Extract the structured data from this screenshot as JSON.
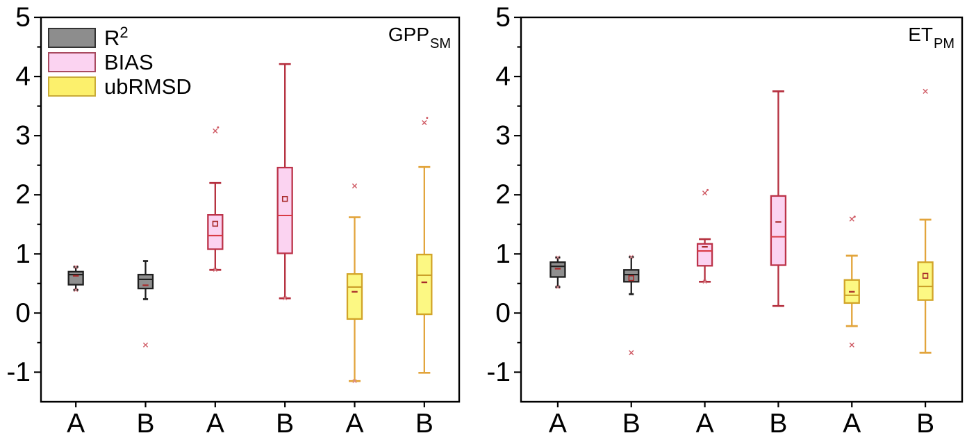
{
  "figure": {
    "background": "#ffffff",
    "frame_color": "#000000"
  },
  "legend": {
    "entries": [
      {
        "label": "R",
        "sup": "2",
        "fill": "#8d8d8d",
        "edge": "#333333"
      },
      {
        "label": "BIAS",
        "sup": "",
        "fill": "#fbd3f1",
        "edge": "#a84a60"
      },
      {
        "label": "ubRMSD",
        "sup": "",
        "fill": "#fcf06c",
        "edge": "#c9ac38"
      }
    ]
  },
  "series_styles": {
    "R2": {
      "fill": "#8f8f8f",
      "edge": "#1f1f1f",
      "whisker": "#1f1f1f",
      "median": "#1f1f1f"
    },
    "BIAS": {
      "fill": "#fbd3f1",
      "edge": "#bc3349",
      "whisker": "#b5303f",
      "median": "#d93b46"
    },
    "ubRMSD": {
      "fill": "#fcf883",
      "edge": "#d2a428",
      "whisker": "#e2a43b",
      "median": "#caa02a"
    }
  },
  "marker_styles": {
    "mean_color": "#a82a2a",
    "outlier_color": "#cf5a64",
    "cap_mark_color": "#dc8890"
  },
  "chart_data": [
    {
      "type": "box",
      "panel": "left",
      "title": "GPP",
      "title_sub": "SM",
      "categories": [
        "A",
        "B",
        "A",
        "B",
        "A",
        "B"
      ],
      "ylim": [
        -1.5,
        5
      ],
      "yticks": [
        -1,
        0,
        1,
        2,
        3,
        4,
        5
      ],
      "y_minor_step": 0.5,
      "grid": false,
      "boxes": [
        {
          "series": "R2",
          "category": "A",
          "whisker_low": 0.39,
          "q1": 0.48,
          "median": 0.65,
          "q3": 0.7,
          "whisker_high": 0.78,
          "mean": 0.63,
          "mean_marker": "dash",
          "outliers": [],
          "cap_marks": [
            0.78,
            0.39
          ]
        },
        {
          "series": "R2",
          "category": "B",
          "whisker_low": 0.235,
          "q1": 0.415,
          "median": 0.57,
          "q3": 0.65,
          "whisker_high": 0.88,
          "mean": 0.47,
          "mean_marker": "dash",
          "outliers": [
            -0.54
          ],
          "cap_marks": []
        },
        {
          "series": "BIAS",
          "category": "A",
          "whisker_low": 0.73,
          "q1": 1.08,
          "median": 1.31,
          "q3": 1.66,
          "whisker_high": 2.2,
          "mean": 1.51,
          "mean_marker": "square",
          "outliers": [
            3.08,
            3.14
          ],
          "cap_marks": [
            0.73
          ]
        },
        {
          "series": "BIAS",
          "category": "B",
          "whisker_low": 0.25,
          "q1": 1.01,
          "median": 1.65,
          "q3": 2.46,
          "whisker_high": 4.21,
          "mean": 1.93,
          "mean_marker": "square",
          "outliers": [],
          "cap_marks": [
            0.25
          ]
        },
        {
          "series": "ubRMSD",
          "category": "A",
          "whisker_low": -1.15,
          "q1": -0.1,
          "median": 0.44,
          "q3": 0.66,
          "whisker_high": 1.62,
          "mean": 0.36,
          "mean_marker": "dash",
          "outliers": [
            2.15
          ],
          "cap_marks": [
            -1.15
          ]
        },
        {
          "series": "ubRMSD",
          "category": "B",
          "whisker_low": -1.01,
          "q1": -0.02,
          "median": 0.64,
          "q3": 0.99,
          "whisker_high": 2.47,
          "mean": 0.52,
          "mean_marker": "dash",
          "outliers": [
            3.22,
            3.3
          ],
          "cap_marks": []
        }
      ]
    },
    {
      "type": "box",
      "panel": "right",
      "title": "ET",
      "title_sub": "PM",
      "categories": [
        "A",
        "B",
        "A",
        "B",
        "A",
        "B"
      ],
      "ylim": [
        -1.5,
        5
      ],
      "yticks": [
        -1,
        0,
        1,
        2,
        3,
        4,
        5
      ],
      "y_minor_step": 0.5,
      "grid": false,
      "boxes": [
        {
          "series": "R2",
          "category": "A",
          "whisker_low": 0.44,
          "q1": 0.61,
          "median": 0.79,
          "q3": 0.86,
          "whisker_high": 0.94,
          "mean": 0.75,
          "mean_marker": "dash",
          "outliers": [],
          "cap_marks": [
            0.94,
            0.44
          ]
        },
        {
          "series": "R2",
          "category": "B",
          "whisker_low": 0.32,
          "q1": 0.53,
          "median": 0.65,
          "q3": 0.73,
          "whisker_high": 0.95,
          "mean": 0.59,
          "mean_marker": "square",
          "outliers": [
            -0.67
          ],
          "cap_marks": [
            0.95
          ]
        },
        {
          "series": "BIAS",
          "category": "A",
          "whisker_low": 0.53,
          "q1": 0.8,
          "median": 1.05,
          "q3": 1.17,
          "whisker_high": 1.25,
          "mean": 1.12,
          "mean_marker": "dash",
          "outliers": [
            2.03,
            2.08
          ],
          "cap_marks": [
            0.53
          ]
        },
        {
          "series": "BIAS",
          "category": "B",
          "whisker_low": 0.12,
          "q1": 0.81,
          "median": 1.29,
          "q3": 1.98,
          "whisker_high": 3.75,
          "mean": 1.54,
          "mean_marker": "dash",
          "outliers": [],
          "cap_marks": []
        },
        {
          "series": "ubRMSD",
          "category": "A",
          "whisker_low": -0.22,
          "q1": 0.17,
          "median": 0.3,
          "q3": 0.56,
          "whisker_high": 0.97,
          "mean": 0.36,
          "mean_marker": "dash",
          "outliers": [
            1.59,
            1.63,
            -0.54
          ],
          "cap_marks": []
        },
        {
          "series": "ubRMSD",
          "category": "B",
          "whisker_low": -0.67,
          "q1": 0.22,
          "median": 0.45,
          "q3": 0.86,
          "whisker_high": 1.58,
          "mean": 0.63,
          "mean_marker": "square",
          "outliers": [
            3.75
          ],
          "cap_marks": []
        }
      ]
    }
  ]
}
